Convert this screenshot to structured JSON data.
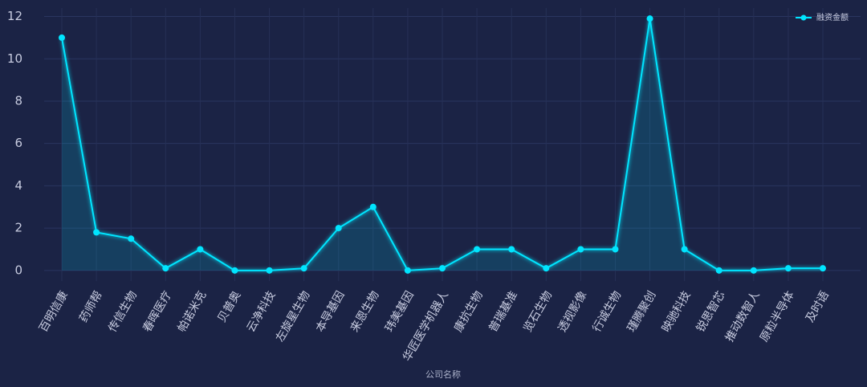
{
  "chart_data": {
    "type": "line",
    "x_label": "公司名称",
    "categories": [
      "百明信康",
      "药师帮",
      "传信生物",
      "春晖医疗",
      "帕诺米克",
      "贝普奥",
      "云净科技",
      "左旋星生物",
      "本导基因",
      "来恩生物",
      "玮美基因",
      "华匠医学机器人",
      "康抗生物",
      "普瑞基准",
      "览石生物",
      "透视影像",
      "行诚生物",
      "瑾腾聚创",
      "映驰科技",
      "锐思智芯",
      "推动数智人",
      "原粒半导体",
      "及时语"
    ],
    "series": [
      {
        "name": "融资金额",
        "color": "#00e5ff",
        "values": [
          11,
          1.8,
          1.5,
          0.1,
          1,
          0,
          0,
          0.1,
          2,
          3,
          0,
          0.1,
          1,
          1,
          0.1,
          1,
          1,
          11.9,
          1,
          0,
          0,
          0.1,
          0.1
        ]
      }
    ],
    "ylim": [
      -0.5,
      12.4
    ],
    "yticks": [
      0,
      2,
      4,
      6,
      8,
      10,
      12
    ],
    "grid": true,
    "legend": "upper right"
  }
}
